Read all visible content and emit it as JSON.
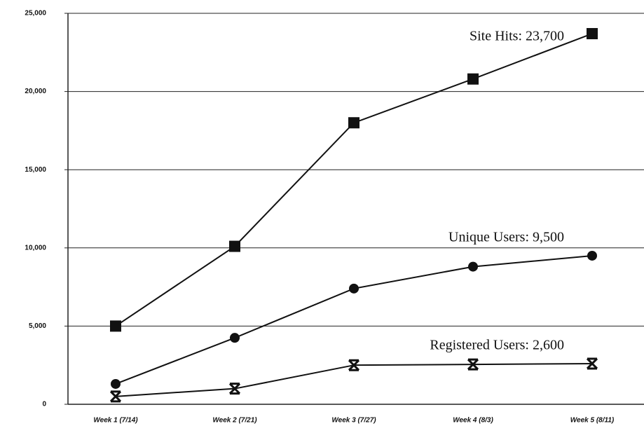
{
  "chart_data": {
    "type": "line",
    "categories": [
      "Week 1 (7/14)",
      "Week 2 (7/21)",
      "Week 3 (7/27)",
      "Week 4 (8/3)",
      "Week 5 (8/11)"
    ],
    "series": [
      {
        "label": "Site Hits: 23,700",
        "marker": "square",
        "color": "#111111",
        "values": [
          5000,
          10100,
          18000,
          20800,
          23700
        ]
      },
      {
        "label": "Unique Users: 9,500",
        "marker": "circle",
        "color": "#111111",
        "values": [
          1300,
          4250,
          7400,
          8800,
          9500
        ]
      },
      {
        "label": "Registered Users: 2,600",
        "marker": "cross",
        "color": "#111111",
        "values": [
          500,
          1000,
          2500,
          2550,
          2600
        ]
      }
    ],
    "ylim": [
      0,
      25000
    ],
    "yticks": [
      0,
      {
        "value": 5000,
        "label": "5,000"
      },
      {
        "value": 10000,
        "label": "10,000"
      },
      {
        "value": 15000,
        "label": "15,000"
      },
      {
        "value": 20000,
        "label": "20,000"
      },
      {
        "value": 25000,
        "label": "25,000"
      }
    ],
    "grid": true
  }
}
